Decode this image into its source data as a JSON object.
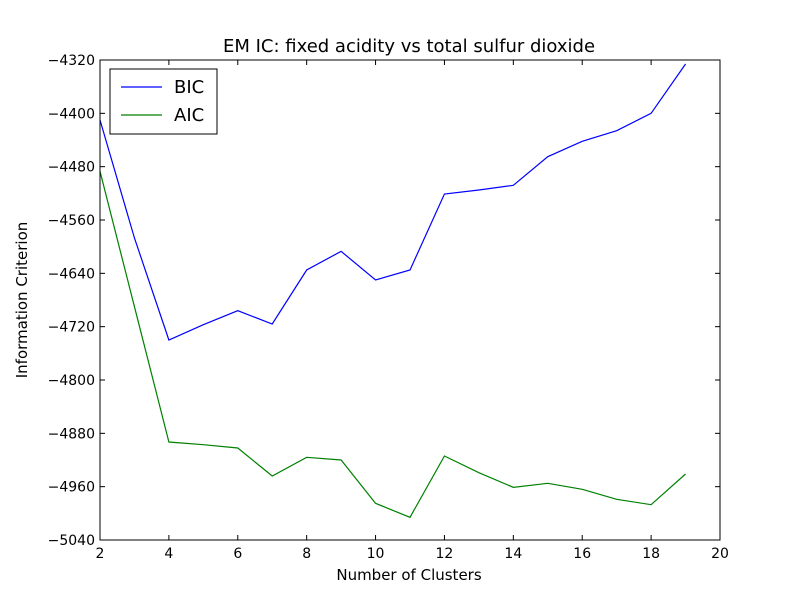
{
  "chart_data": {
    "type": "line",
    "title": "EM IC: fixed acidity vs total sulfur dioxide",
    "xlabel": "Number of Clusters",
    "ylabel": "Information Criterion",
    "xlim": [
      2,
      20
    ],
    "ylim": [
      -5040,
      -4320
    ],
    "xticks": [
      "2",
      "4",
      "6",
      "8",
      "10",
      "12",
      "14",
      "16",
      "18",
      "20"
    ],
    "yticks": [
      "−4320",
      "−4400",
      "−4480",
      "−4560",
      "−4640",
      "−4720",
      "−4800",
      "−4880",
      "−4960",
      "−5040"
    ],
    "ytick_values": [
      -4320,
      -4400,
      -4480,
      -4560,
      -4640,
      -4720,
      -4800,
      -4880,
      -4960,
      -5040
    ],
    "xtick_values": [
      2,
      4,
      6,
      8,
      10,
      12,
      14,
      16,
      18,
      20
    ],
    "grid": false,
    "legend_position": "top-left",
    "x": [
      2,
      3,
      4,
      5,
      6,
      7,
      8,
      9,
      10,
      11,
      12,
      13,
      14,
      15,
      16,
      17,
      18,
      19
    ],
    "series": [
      {
        "name": "BIC",
        "color": "#0000ff",
        "values": [
          -4410,
          -4587,
          -4740,
          -4717,
          -4696,
          -4716,
          -4635,
          -4607,
          -4650,
          -4635,
          -4521,
          -4515,
          -4508,
          -4465,
          -4442,
          -4426,
          -4400,
          -4326
        ]
      },
      {
        "name": "AIC",
        "color": "#008000",
        "values": [
          -4487,
          -4690,
          -4893,
          -4897,
          -4902,
          -4944,
          -4916,
          -4920,
          -4985,
          -5006,
          -4914,
          -4939,
          -4961,
          -4955,
          -4964,
          -4979,
          -4987,
          -4941
        ]
      }
    ]
  }
}
